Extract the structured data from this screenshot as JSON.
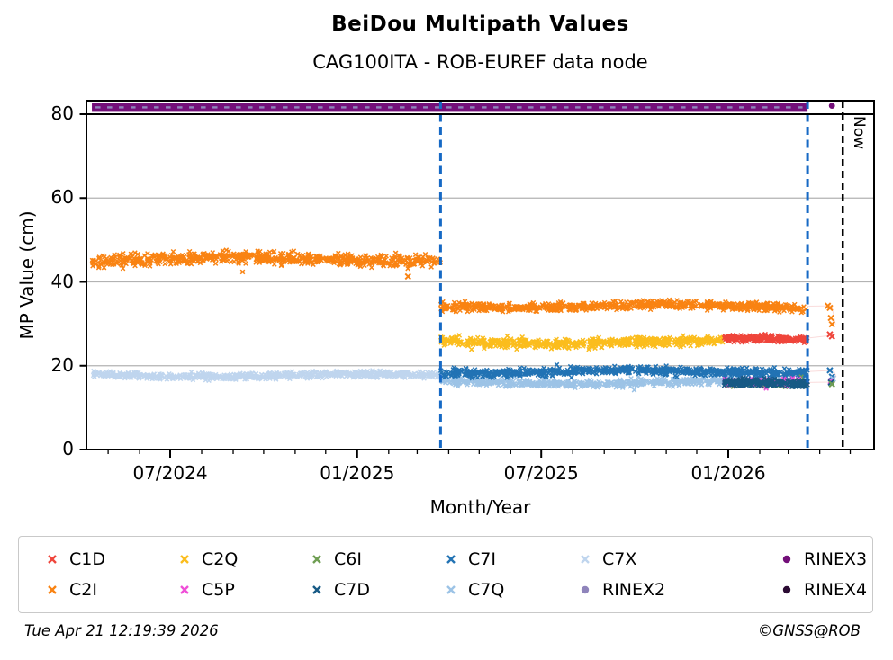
{
  "title": "BeiDou Multipath Values",
  "subtitle": "CAG100ITA - ROB-EUREF data node",
  "now_label": "Now",
  "footer": {
    "timestamp": "Tue Apr 21 12:19:39 2026",
    "copyright": "©GNSS@ROB"
  },
  "colors": {
    "C1D": "#ef453b",
    "C2I": "#f98312",
    "C2Q": "#fbbd1d",
    "C5P": "#ef4fd8",
    "C6I": "#6f9e53",
    "C7I": "#2273b4",
    "C7D": "#175a85",
    "C7X": "#bfd5ee",
    "C7Q": "#9cc3e6",
    "RINEX3": "#730f79",
    "RINEX2": "#8f84bb",
    "RINEX4": "#2b0b33",
    "event_line_blue": "#1669c5",
    "now_line": "#000000",
    "grid": "#b3b3b3",
    "connector": "#f6c5c5",
    "frame": "#000000"
  },
  "legend": {
    "items": [
      {
        "label": "C1D",
        "marker": "x",
        "color": "#ef453b"
      },
      {
        "label": "C2Q",
        "marker": "x",
        "color": "#fbbd1d"
      },
      {
        "label": "C6I",
        "marker": "x",
        "color": "#6f9e53"
      },
      {
        "label": "C7I",
        "marker": "x",
        "color": "#2273b4"
      },
      {
        "label": "C7X",
        "marker": "x",
        "color": "#bfd5ee"
      },
      {
        "label": "RINEX3",
        "marker": "circle",
        "color": "#730f79"
      },
      {
        "label": "C2I",
        "marker": "x",
        "color": "#f98312"
      },
      {
        "label": "C5P",
        "marker": "x",
        "color": "#ef4fd8"
      },
      {
        "label": "C7D",
        "marker": "x",
        "color": "#175a85"
      },
      {
        "label": "C7Q",
        "marker": "x",
        "color": "#9cc3e6"
      },
      {
        "label": "RINEX2",
        "marker": "circle",
        "color": "#8f84bb"
      },
      {
        "label": "RINEX4",
        "marker": "circle",
        "color": "#2b0b33"
      }
    ]
  },
  "chart_data": {
    "type": "scatter",
    "title": "BeiDou Multipath Values",
    "subtitle": "CAG100ITA - ROB-EUREF data node",
    "xlabel": "Month/Year",
    "ylabel": "MP Value (cm)",
    "ylim": [
      0,
      83
    ],
    "yticks": [
      0,
      20,
      40,
      60,
      80
    ],
    "xticks": [
      {
        "label": "07/2024",
        "date": "2024-07-01"
      },
      {
        "label": "01/2025",
        "date": "2025-01-01"
      },
      {
        "label": "07/2025",
        "date": "2025-07-01"
      },
      {
        "label": "01/2026",
        "date": "2026-01-01"
      }
    ],
    "x_range_dates": [
      "2024-04-10",
      "2026-05-24"
    ],
    "grid": "horizontal",
    "legend_position": "bottom",
    "events": {
      "equipment_change_1": "2025-03-24",
      "equipment_change_2": "2026-03-20",
      "now": "2026-04-21"
    },
    "series": [
      {
        "signal": "C7X",
        "segments": [
          {
            "from": "2024-04-15",
            "to": "2025-03-24",
            "mean": 17.7,
            "spread": 0.8,
            "points": 650
          }
        ]
      },
      {
        "signal": "C7Q",
        "segments": [
          {
            "from": "2025-03-24",
            "to": "2026-03-20",
            "mean": 16.0,
            "spread": 0.9,
            "points": 620
          }
        ]
      },
      {
        "signal": "C7I",
        "segments": [
          {
            "from": "2025-03-24",
            "to": "2026-03-20",
            "mean": 18.6,
            "spread": 1.0,
            "points": 700
          }
        ]
      },
      {
        "signal": "C2Q",
        "segments": [
          {
            "from": "2025-03-24",
            "to": "2025-12-28",
            "mean": 25.6,
            "spread": 1.1,
            "points": 560
          }
        ]
      },
      {
        "signal": "C2I",
        "segments": [
          {
            "from": "2024-04-15",
            "to": "2025-03-24",
            "mean": 45.4,
            "spread": 1.5,
            "points": 660
          },
          {
            "from": "2025-03-24",
            "to": "2026-03-20",
            "mean": 34.2,
            "spread": 1.0,
            "points": 700
          }
        ]
      },
      {
        "signal": "C6I",
        "segments": [
          {
            "from": "2025-12-28",
            "to": "2026-03-20",
            "mean": 15.6,
            "spread": 0.8,
            "points": 150
          }
        ]
      },
      {
        "signal": "C5P",
        "segments": [
          {
            "from": "2025-12-28",
            "to": "2026-03-20",
            "mean": 16.3,
            "spread": 0.8,
            "points": 150
          }
        ]
      },
      {
        "signal": "C7D",
        "segments": [
          {
            "from": "2025-12-28",
            "to": "2026-03-20",
            "mean": 15.9,
            "spread": 0.9,
            "points": 200
          }
        ]
      },
      {
        "signal": "C1D",
        "segments": [
          {
            "from": "2025-12-28",
            "to": "2026-03-20",
            "mean": 26.6,
            "spread": 0.8,
            "points": 220
          }
        ]
      }
    ],
    "rinex_bands": [
      {
        "name": "RINEX3",
        "from": "2024-04-15",
        "to": "2026-03-20",
        "value": 81.3,
        "style": "dense-band"
      },
      {
        "name": "RINEX2",
        "from": "2024-04-15",
        "to": "2026-03-20",
        "value": 81.3,
        "style": "interleaved-dashes"
      }
    ],
    "isolated_points": [
      {
        "signal": "C2I",
        "date": "2025-02-20",
        "value": 41.3
      },
      {
        "signal": "RINEX3",
        "date": "2026-04-13",
        "value": 81.3
      },
      {
        "signal": "C2I",
        "date": "2026-04-09",
        "value": 34.3
      },
      {
        "signal": "C2I",
        "date": "2026-04-11",
        "value": 33.8
      },
      {
        "signal": "C2I",
        "date": "2026-04-12",
        "value": 31.4
      },
      {
        "signal": "C2I",
        "date": "2026-04-13",
        "value": 29.9
      },
      {
        "signal": "C1D",
        "date": "2026-04-11",
        "value": 27.5
      },
      {
        "signal": "C1D",
        "date": "2026-04-13",
        "value": 27.0
      },
      {
        "signal": "C7I",
        "date": "2026-04-11",
        "value": 18.9
      },
      {
        "signal": "C7I",
        "date": "2026-04-13",
        "value": 17.4
      },
      {
        "signal": "C7Q",
        "date": "2026-04-14",
        "value": 16.9
      },
      {
        "signal": "C5P",
        "date": "2026-04-12",
        "value": 16.3
      },
      {
        "signal": "C7D",
        "date": "2026-04-12",
        "value": 16.0
      },
      {
        "signal": "C6I",
        "date": "2026-04-13",
        "value": 15.6
      }
    ]
  }
}
